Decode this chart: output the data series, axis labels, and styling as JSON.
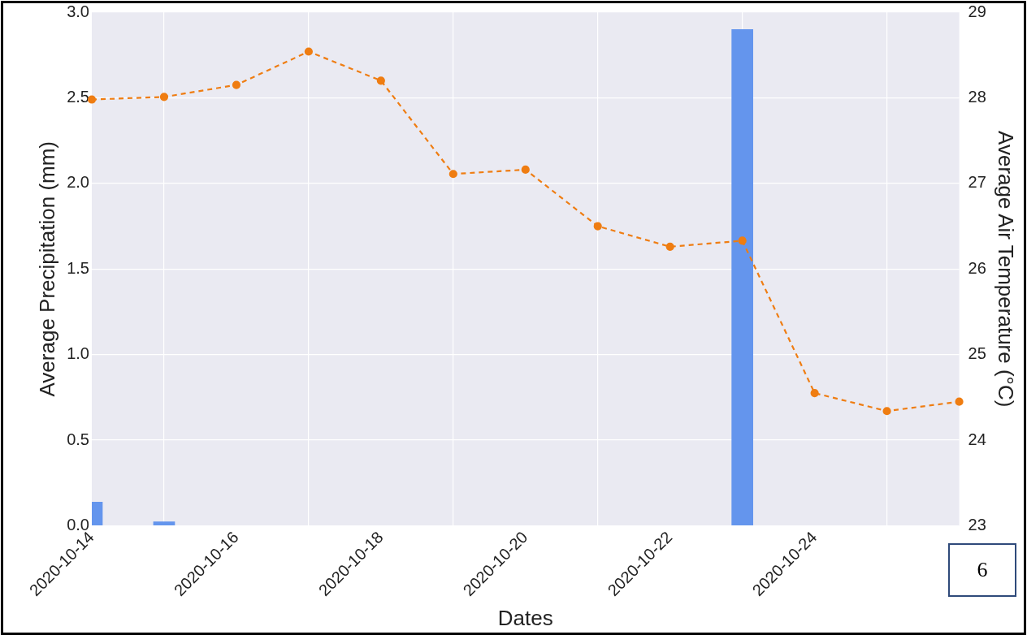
{
  "chart_data": {
    "type": "bar",
    "xlabel": "Dates",
    "ylabel": "Average Precipitation (mm)",
    "y2label": "Average Air Temperature (°C)",
    "x": [
      "2020-10-14",
      "2020-10-15",
      "2020-10-16",
      "2020-10-17",
      "2020-10-18",
      "2020-10-19",
      "2020-10-20",
      "2020-10-21",
      "2020-10-22",
      "2020-10-23",
      "2020-10-24",
      "2020-10-25",
      "2020-10-26"
    ],
    "series": [
      {
        "color": "#6495ed",
        "values": [
          0.14,
          0.025,
          0,
          0,
          0,
          0,
          0,
          0,
          0,
          2.9,
          0,
          0,
          0
        ]
      },
      {
        "type": "line",
        "axis": "y2",
        "color": "#ef7d12",
        "line_style": "dashed",
        "marker": "circle",
        "values": [
          27.98,
          28.01,
          28.15,
          28.54,
          28.2,
          27.11,
          27.16,
          26.5,
          26.26,
          26.33,
          24.55,
          24.34,
          24.45
        ]
      }
    ],
    "xlim": [
      "2020-10-14",
      "2020-10-26"
    ],
    "xticks": [
      "2020-10-14",
      "2020-10-16",
      "2020-10-18",
      "2020-10-20",
      "2020-10-22",
      "2020-10-24"
    ],
    "ylim": [
      0,
      3
    ],
    "yticks": [
      {
        "value": 0,
        "label": "0.0"
      },
      {
        "value": 0.5,
        "label": "0.5"
      },
      {
        "value": 1,
        "label": "1.0"
      },
      {
        "value": 1.5,
        "label": "1.5"
      },
      {
        "value": 2,
        "label": "2.0"
      },
      {
        "value": 2.5,
        "label": "2.5"
      },
      {
        "value": 3,
        "label": "3.0"
      }
    ],
    "y2lim": [
      23,
      29
    ],
    "y2ticks": [
      23,
      24,
      25,
      26,
      27,
      28,
      29
    ],
    "grid": true,
    "legend": false,
    "annotations": [
      "6"
    ]
  }
}
